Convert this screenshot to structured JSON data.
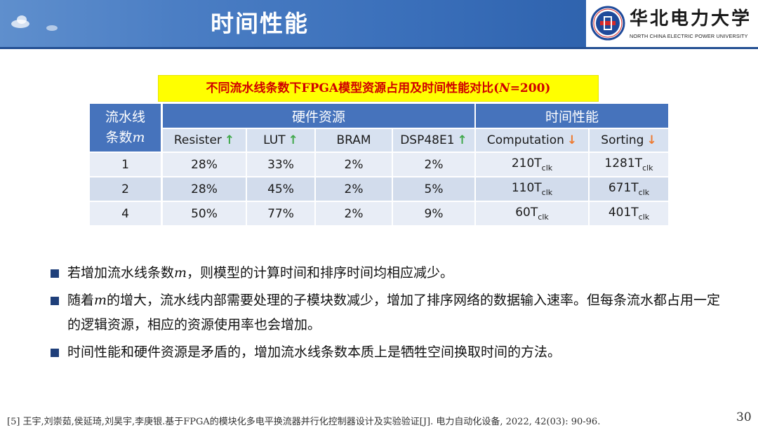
{
  "header": {
    "title": "时间性能",
    "university_cn": "华北电力大学",
    "university_en": "NORTH CHINA ELECTRIC POWER UNIVERSITY"
  },
  "caption": {
    "text": "不同流水线条数下FPGA模型资源占用及时间性能对比(",
    "var": "N",
    "suffix": "=200)"
  },
  "table": {
    "corner_line1": "流水线",
    "corner_line2": "条数",
    "corner_var": "m",
    "group_hardware": "硬件资源",
    "group_time": "时间性能",
    "columns": [
      {
        "label": "Resister",
        "arrow": "up"
      },
      {
        "label": "LUT",
        "arrow": "up"
      },
      {
        "label": "BRAM",
        "arrow": ""
      },
      {
        "label": "DSP48E1",
        "arrow": "up"
      },
      {
        "label": "Computation",
        "arrow": "down"
      },
      {
        "label": "Sorting",
        "arrow": "down"
      }
    ],
    "rows": [
      {
        "m": "1",
        "resister": "28%",
        "lut": "33%",
        "bram": "2%",
        "dsp": "2%",
        "computation": "210T",
        "sorting": "1281T"
      },
      {
        "m": "2",
        "resister": "28%",
        "lut": "45%",
        "bram": "2%",
        "dsp": "5%",
        "computation": "110T",
        "sorting": "671T"
      },
      {
        "m": "4",
        "resister": "50%",
        "lut": "77%",
        "bram": "2%",
        "dsp": "9%",
        "computation": "60T",
        "sorting": "401T"
      }
    ],
    "subscript": "clk",
    "arrow_up_color": "#3fa84a",
    "arrow_down_color": "#ee7a30",
    "header_color": "#4673bc"
  },
  "bullets": [
    {
      "pre": "若增加流水线条数",
      "var": "m",
      "post": "，则模型的计算时间和排序时间均相应减少。"
    },
    {
      "pre": "随着",
      "var": "m",
      "post": "的增大，流水线内部需要处理的子模块数减少，增加了排序网络的数据输入速率。但每条流水都占用一定的逻辑资源，相应的资源使用率也会增加。"
    },
    {
      "pre": "时间性能和硬件资源是矛盾的，增加流水线条数本质上是牺牲空间换取时间的方法。",
      "var": "",
      "post": ""
    }
  ],
  "footer": {
    "reference": "[5] 王宇,刘崇茹,侯延琦,刘昊宇,李庚银.基于FPGA的模块化多电平换流器并行化控制器设计及实验验证[J]. 电力自动化设备, 2022, 42(03): 90-96.",
    "page_number": "30"
  }
}
